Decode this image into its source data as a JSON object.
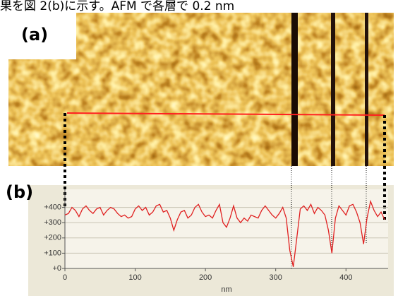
{
  "header": {
    "text": "果を図 2(b)に示す。AFM で各層で 0.2 nm"
  },
  "figure": {
    "panel_a_label": "(a)",
    "panel_b_label": "(b)"
  },
  "chart_data": {
    "type": "line",
    "x_label": "nm",
    "x": [
      0,
      5,
      10,
      15,
      20,
      25,
      30,
      35,
      40,
      45,
      50,
      55,
      60,
      65,
      70,
      75,
      80,
      85,
      90,
      95,
      100,
      105,
      110,
      115,
      120,
      125,
      130,
      135,
      140,
      145,
      150,
      155,
      160,
      165,
      170,
      175,
      180,
      185,
      190,
      195,
      200,
      205,
      210,
      215,
      220,
      225,
      230,
      235,
      240,
      245,
      250,
      255,
      260,
      265,
      270,
      275,
      280,
      285,
      290,
      295,
      300,
      305,
      310,
      315,
      320,
      325,
      330,
      335,
      340,
      345,
      350,
      355,
      360,
      365,
      370,
      375,
      380,
      385,
      390,
      395,
      400,
      405,
      410,
      415,
      420,
      425,
      430,
      435,
      440,
      445,
      450,
      455
    ],
    "values": [
      350,
      360,
      400,
      380,
      340,
      390,
      410,
      380,
      360,
      390,
      400,
      350,
      380,
      400,
      390,
      360,
      340,
      350,
      330,
      340,
      390,
      410,
      380,
      400,
      350,
      370,
      410,
      420,
      370,
      380,
      330,
      250,
      320,
      370,
      380,
      330,
      350,
      400,
      420,
      370,
      340,
      350,
      330,
      380,
      420,
      300,
      270,
      330,
      410,
      330,
      300,
      330,
      310,
      350,
      340,
      330,
      380,
      410,
      380,
      350,
      330,
      360,
      400,
      330,
      120,
      10,
      200,
      390,
      410,
      380,
      420,
      360,
      400,
      380,
      350,
      250,
      100,
      330,
      410,
      380,
      350,
      410,
      420,
      370,
      300,
      160,
      330,
      440,
      380,
      340,
      370,
      320
    ],
    "color": "#e02020",
    "xlim": [
      0,
      460
    ],
    "xticks": [
      0,
      100,
      200,
      300,
      400
    ],
    "ylim": [
      0,
      500
    ],
    "yticks": [
      {
        "value": 0,
        "label": "+0"
      },
      {
        "value": 100,
        "label": "+100"
      },
      {
        "value": 200,
        "label": "+200"
      },
      {
        "value": 300,
        "label": "+300"
      },
      {
        "value": 400,
        "label": "+400"
      }
    ],
    "grid": true
  }
}
